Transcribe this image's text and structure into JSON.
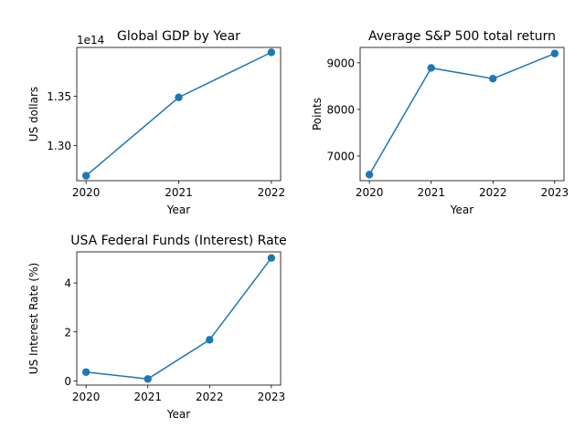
{
  "chart_data": [
    {
      "type": "line",
      "title": "Global GDP by Year",
      "xlabel": "Year",
      "ylabel": "US dollars",
      "offset_text": "1e14",
      "x": [
        2020,
        2021,
        2022
      ],
      "x_tick_labels": [
        "2020",
        "2021",
        "2022"
      ],
      "series": [
        {
          "values": [
            126900000000000.0,
            134900000000000.0,
            139500000000000.0
          ]
        }
      ],
      "y_ticks": [
        130000000000000.0,
        135000000000000.0
      ],
      "y_tick_labels": [
        "1.30",
        "1.35"
      ],
      "ylim": [
        126400000000000.0,
        140000000000000.0
      ],
      "xlim": [
        2019.9,
        2022.1
      ],
      "marker": "circle",
      "color": "#1f77b4",
      "grid": false
    },
    {
      "type": "line",
      "title": "Average S&P 500 total return",
      "xlabel": "Year",
      "ylabel": "Points",
      "x": [
        2020,
        2021,
        2022,
        2023
      ],
      "x_tick_labels": [
        "2020",
        "2021",
        "2022",
        "2023"
      ],
      "series": [
        {
          "values": [
            6600,
            8890,
            8660,
            9200
          ]
        }
      ],
      "y_ticks": [
        7000,
        8000,
        9000
      ],
      "y_tick_labels": [
        "7000",
        "8000",
        "9000"
      ],
      "ylim": [
        6470,
        9330
      ],
      "xlim": [
        2019.85,
        2023.15
      ],
      "marker": "circle",
      "color": "#1f77b4",
      "grid": false
    },
    {
      "type": "line",
      "title": "USA Federal Funds (Interest) Rate",
      "xlabel": "Year",
      "ylabel": "US Interest Rate (%)",
      "x": [
        2020,
        2021,
        2022,
        2023
      ],
      "x_tick_labels": [
        "2020",
        "2021",
        "2022",
        "2023"
      ],
      "series": [
        {
          "values": [
            0.36,
            0.08,
            1.68,
            5.02
          ]
        }
      ],
      "y_ticks": [
        0,
        2,
        4
      ],
      "y_tick_labels": [
        "0",
        "2",
        "4"
      ],
      "ylim": [
        -0.17,
        5.27
      ],
      "xlim": [
        2019.85,
        2023.15
      ],
      "marker": "circle",
      "color": "#1f77b4",
      "grid": false
    }
  ]
}
